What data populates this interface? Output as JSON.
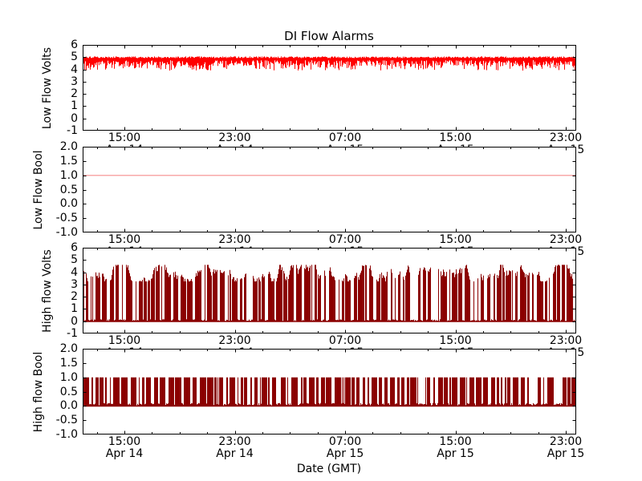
{
  "chart_data": {
    "type": "line",
    "title": "DI Flow Alarms",
    "xlabel": "Date (GMT)",
    "x_axis": {
      "major_ticks": [
        {
          "time": "15:00",
          "date": "Apr 14"
        },
        {
          "time": "23:00",
          "date": "Apr 14"
        },
        {
          "time": "07:00",
          "date": "Apr 15"
        },
        {
          "time": "15:00",
          "date": "Apr 15"
        },
        {
          "time": "23:00",
          "date": "Apr 15"
        }
      ],
      "minor_ticks_per_interval": 3,
      "note": "time axis spans ~12:00 Apr 14 to ~24:00 Apr 15 GMT"
    },
    "subplots": [
      {
        "name": "low-flow-volts",
        "ylabel": "Low Flow Volts",
        "ylim": [
          -1,
          6
        ],
        "yticks": [
          "6",
          "5",
          "4",
          "3",
          "2",
          "1",
          "0",
          "-1"
        ],
        "ytick_values": [
          6,
          5,
          4,
          3,
          2,
          1,
          0,
          -1
        ],
        "series": {
          "label": "low flow volts",
          "color": "#ff0000",
          "pattern": "noisy_band",
          "band_top": [
            4.92,
            5.06
          ],
          "band_bottom": [
            4.3,
            4.75
          ],
          "spike_bottom": [
            3.9,
            4.4
          ],
          "spike_prob": 0.32,
          "seed": 101
        }
      },
      {
        "name": "low-flow-bool",
        "ylabel": "Low Flow Bool",
        "ylim": [
          -1,
          2
        ],
        "yticks": [
          "2.0",
          "1.5",
          "1.0",
          "0.5",
          "0.0",
          "-0.5",
          "-1.0"
        ],
        "ytick_values": [
          2,
          1.5,
          1,
          0.5,
          0,
          -0.5,
          -1
        ],
        "series": {
          "label": "low flow bool",
          "color": "#f8a8a8",
          "pattern": "constant",
          "value": 1.0
        }
      },
      {
        "name": "high-flow-volts",
        "ylabel": "High flow Volts",
        "ylim": [
          -1,
          6
        ],
        "yticks": [
          "6",
          "5",
          "4",
          "3",
          "2",
          "1",
          "0",
          "-1"
        ],
        "ytick_values": [
          6,
          5,
          4,
          3,
          2,
          1,
          0,
          -1
        ],
        "series": {
          "label": "high flow volts",
          "color": "#8b0000",
          "pattern": "pulse_train",
          "top_range": [
            3.25,
            4.6
          ],
          "baseline_noise": [
            0.02,
            0.16
          ],
          "on_run": [
            1,
            8
          ],
          "off_run": [
            1,
            4
          ],
          "long_off_prob": 0.05,
          "long_off_run": [
            5,
            11
          ],
          "seed": 202
        }
      },
      {
        "name": "high-flow-bool",
        "ylabel": "High flow Bool",
        "ylim": [
          -1,
          2
        ],
        "yticks": [
          "2.0",
          "1.5",
          "1.0",
          "0.5",
          "0.0",
          "-0.5",
          "-1.0"
        ],
        "ytick_values": [
          2,
          1.5,
          1,
          0.5,
          0,
          -0.5,
          -1
        ],
        "series": {
          "label": "high flow bool",
          "color": "#8b0000",
          "pattern": "pulse_train",
          "top_range": [
            1.0,
            1.0
          ],
          "baseline_noise": [
            0.02,
            0.1
          ],
          "on_run": [
            1,
            8
          ],
          "off_run": [
            1,
            4
          ],
          "long_off_prob": 0.05,
          "long_off_run": [
            5,
            11
          ],
          "seed": 303
        }
      }
    ],
    "colors": {
      "frame": "#000000",
      "background": "#ffffff"
    }
  }
}
